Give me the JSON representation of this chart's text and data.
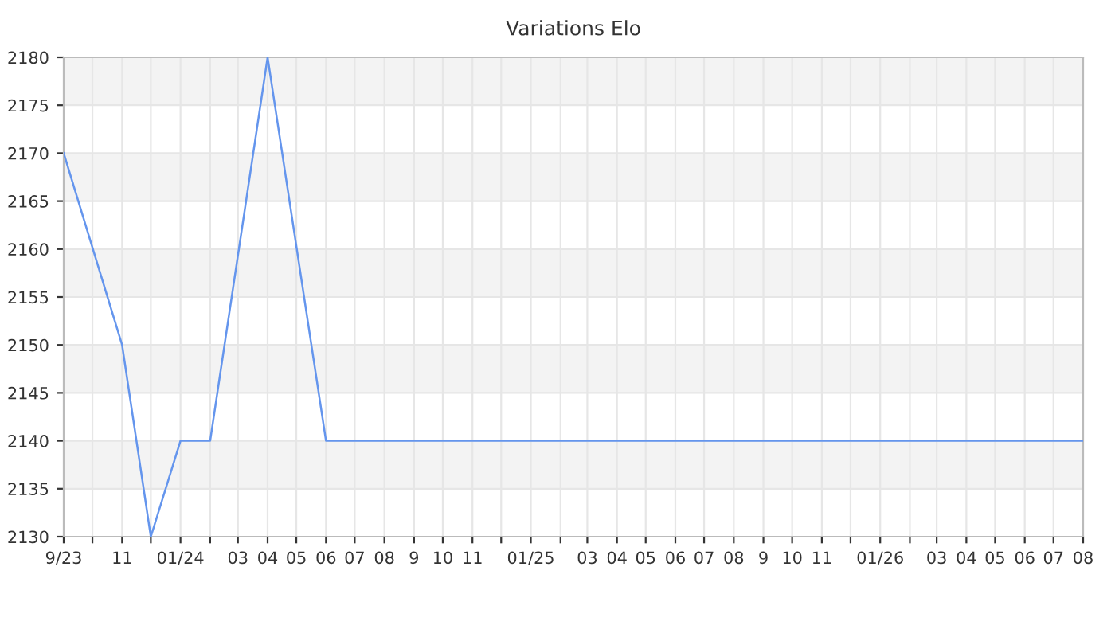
{
  "chart_data": {
    "type": "line",
    "title": "Variations Elo",
    "x": [
      "2023-09",
      "2023-11",
      "2023-12",
      "2024-01",
      "2024-02",
      "2024-04",
      "2024-06",
      "2026-08"
    ],
    "series": [
      {
        "color": "#6495ed",
        "values": [
          2170,
          2150,
          2130,
          2140,
          2140,
          2180,
          2140,
          2140
        ]
      }
    ],
    "xlim": [
      "2023-09",
      "2026-08"
    ],
    "xticks": [
      {
        "value": "2023-09",
        "label": "9/23"
      },
      {
        "value": "2023-10",
        "label": null
      },
      {
        "value": "2023-11",
        "label": "11"
      },
      {
        "value": "2023-12",
        "label": null
      },
      {
        "value": "2024-01",
        "label": "01/24"
      },
      {
        "value": "2024-02",
        "label": null
      },
      {
        "value": "2024-03",
        "label": "03"
      },
      {
        "value": "2024-04",
        "label": "04"
      },
      {
        "value": "2024-05",
        "label": "05"
      },
      {
        "value": "2024-06",
        "label": "06"
      },
      {
        "value": "2024-07",
        "label": "07"
      },
      {
        "value": "2024-08",
        "label": "08"
      },
      {
        "value": "2024-09",
        "label": "9"
      },
      {
        "value": "2024-10",
        "label": "10"
      },
      {
        "value": "2024-11",
        "label": "11"
      },
      {
        "value": "2024-12",
        "label": null
      },
      {
        "value": "2025-01",
        "label": "01/25"
      },
      {
        "value": "2025-02",
        "label": null
      },
      {
        "value": "2025-03",
        "label": "03"
      },
      {
        "value": "2025-04",
        "label": "04"
      },
      {
        "value": "2025-05",
        "label": "05"
      },
      {
        "value": "2025-06",
        "label": "06"
      },
      {
        "value": "2025-07",
        "label": "07"
      },
      {
        "value": "2025-08",
        "label": "08"
      },
      {
        "value": "2025-09",
        "label": "9"
      },
      {
        "value": "2025-10",
        "label": "10"
      },
      {
        "value": "2025-11",
        "label": "11"
      },
      {
        "value": "2025-12",
        "label": null
      },
      {
        "value": "2026-01",
        "label": "01/26"
      },
      {
        "value": "2026-02",
        "label": null
      },
      {
        "value": "2026-03",
        "label": "03"
      },
      {
        "value": "2026-04",
        "label": "04"
      },
      {
        "value": "2026-05",
        "label": "05"
      },
      {
        "value": "2026-06",
        "label": "06"
      },
      {
        "value": "2026-07",
        "label": "07"
      },
      {
        "value": "2026-08",
        "label": "08"
      }
    ],
    "ylim": [
      2130,
      2180
    ],
    "yticks": [
      2130,
      2135,
      2140,
      2145,
      2150,
      2155,
      2160,
      2165,
      2170,
      2175,
      2180
    ],
    "grid": true,
    "legend": false,
    "marker": "none",
    "line_style": "solid"
  }
}
